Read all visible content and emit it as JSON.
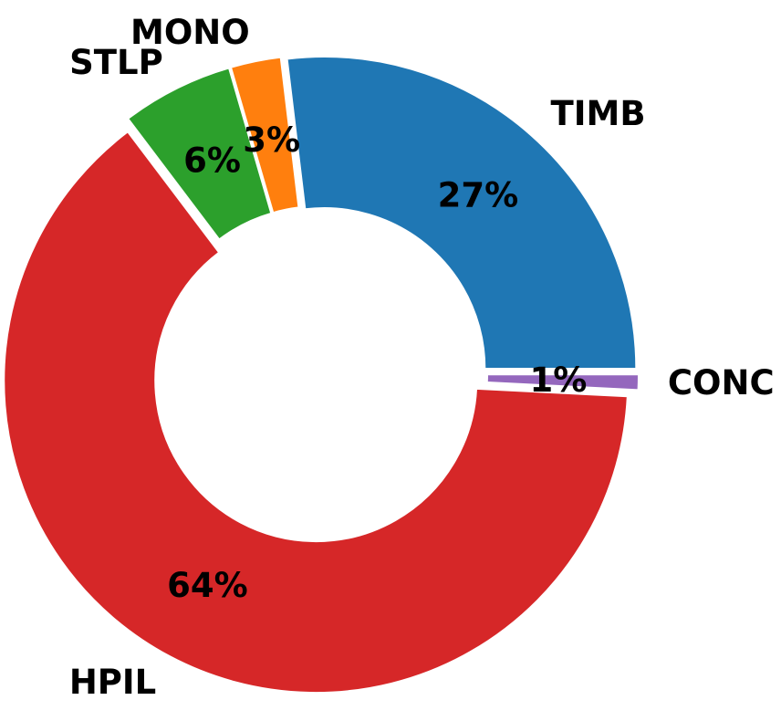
{
  "chart_data": {
    "type": "pie",
    "style": "donut",
    "slices": [
      {
        "label": "TIMB",
        "value": 26.9,
        "pct_label": "27%",
        "color": "#1f77b4"
      },
      {
        "label": "MONO",
        "value": 2.6,
        "pct_label": "3%",
        "color": "#ff7f0e"
      },
      {
        "label": "STLP",
        "value": 5.8,
        "pct_label": "6%",
        "color": "#2ca02c"
      },
      {
        "label": "HPIL",
        "value": 63.9,
        "pct_label": "64%",
        "color": "#d62728"
      },
      {
        "label": "CONC",
        "value": 0.8,
        "pct_label": "1%",
        "color": "#9467bd"
      }
    ],
    "start_angle_deg": 0,
    "direction": "counterclockwise",
    "slice_separator_color": "#ffffff"
  }
}
